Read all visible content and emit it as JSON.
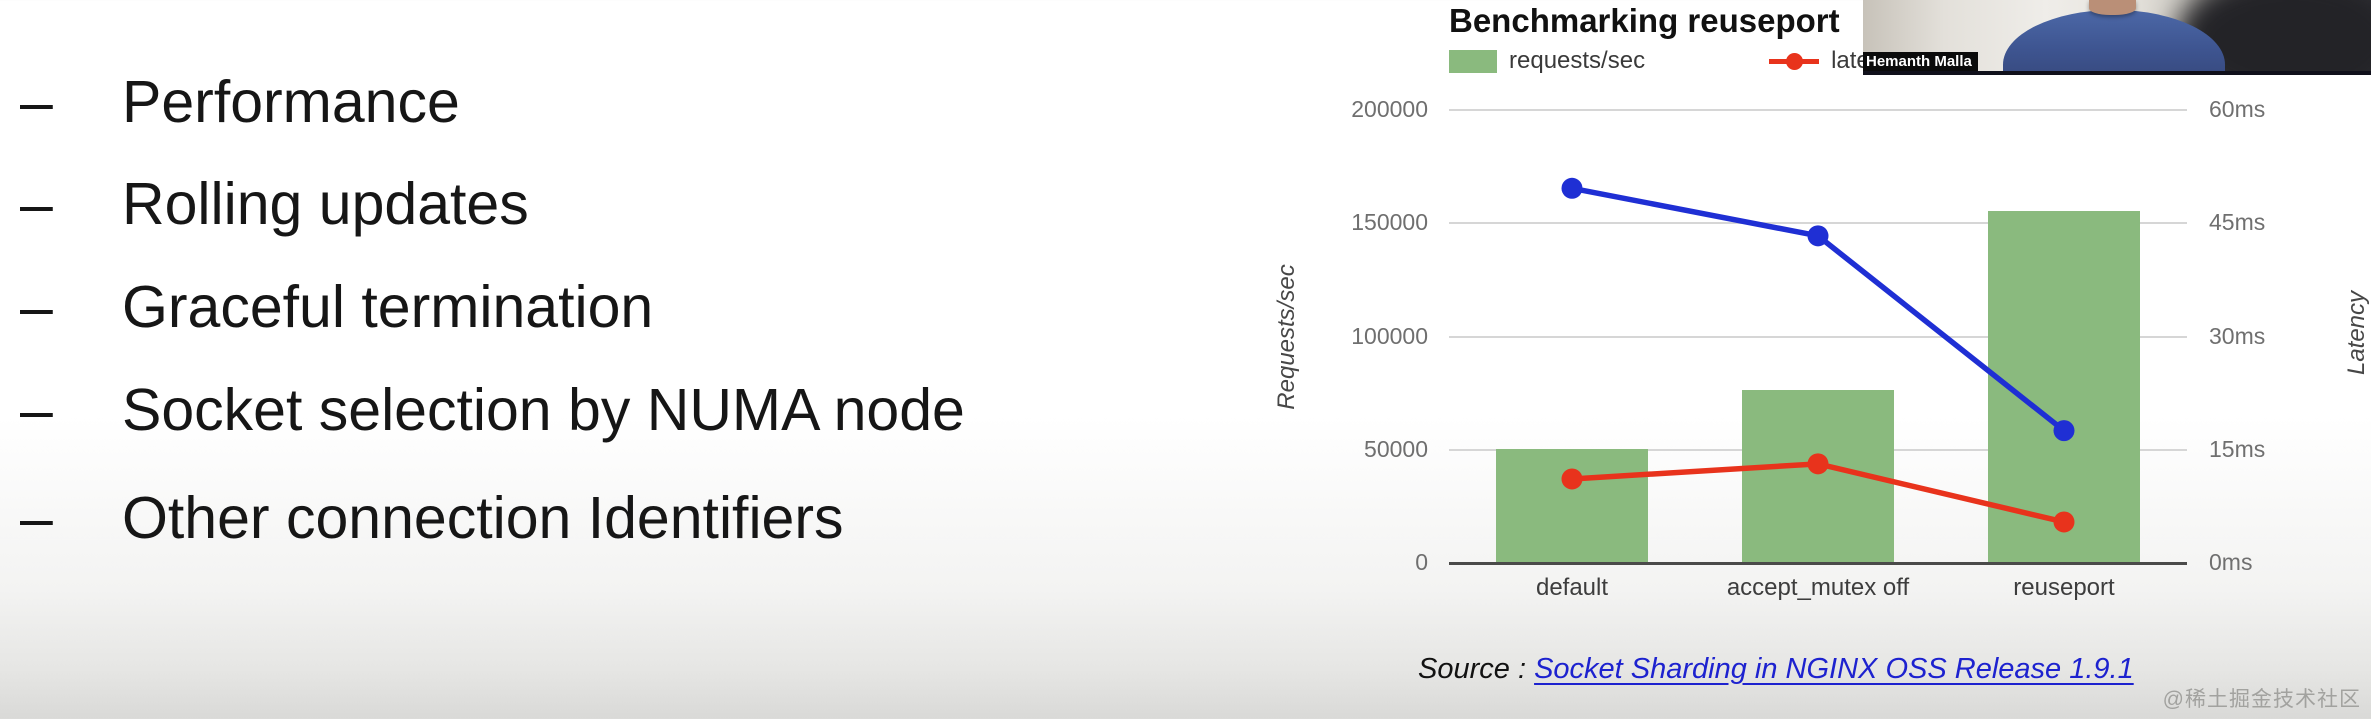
{
  "slide": {
    "bullets": [
      {
        "marker": "–",
        "label": "Performance"
      },
      {
        "marker": "–",
        "label": "Rolling updates"
      },
      {
        "marker": "–",
        "label": "Graceful termination"
      },
      {
        "marker": "–",
        "label": "Socket selection by NUMA node"
      },
      {
        "marker": "–",
        "label": "Other connection Identifiers"
      }
    ],
    "source": {
      "prefix": "Source : ",
      "link_text": "Socket Sharding in NGINX OSS Release 1.9.1"
    },
    "watermark": "@稀土掘金技术社区"
  },
  "webcam": {
    "name_tag": "Hemanth Malla"
  },
  "chart": {
    "title": "Benchmarking reuseport",
    "legend": [
      {
        "label": "requests/sec",
        "swatch": "green-bar"
      },
      {
        "label": "latency (ms",
        "swatch": "red-line-dot"
      }
    ]
  },
  "chart_data": {
    "type": "bar",
    "subtype": "combo bar + line, dual axis",
    "title": "Benchmarking reuseport",
    "categories": [
      "default",
      "accept_mutex off",
      "reuseport"
    ],
    "series": [
      {
        "name": "requests/sec",
        "chart": "bar",
        "axis": "left",
        "color": "#8aba7e",
        "values": [
          51000,
          77000,
          156000
        ]
      },
      {
        "name": "",
        "legend_visible": false,
        "chart": "line",
        "axis": "left",
        "color": "#1f2fd4",
        "values": [
          165000,
          144000,
          58000
        ]
      },
      {
        "name": "latency (ms",
        "chart": "line",
        "axis": "right",
        "color": "#e8331c",
        "values": [
          11,
          13,
          5.3
        ]
      }
    ],
    "left_axis": {
      "title": "Requests/sec",
      "range": [
        0,
        200000
      ],
      "ticks": [
        0,
        50000,
        100000,
        150000,
        200000
      ]
    },
    "right_axis": {
      "title": "Latency",
      "range": [
        0,
        60
      ],
      "ticks": [
        "0ms",
        "15ms",
        "30ms",
        "45ms",
        "60ms"
      ]
    },
    "grid": true,
    "legend_position": "top-left"
  }
}
